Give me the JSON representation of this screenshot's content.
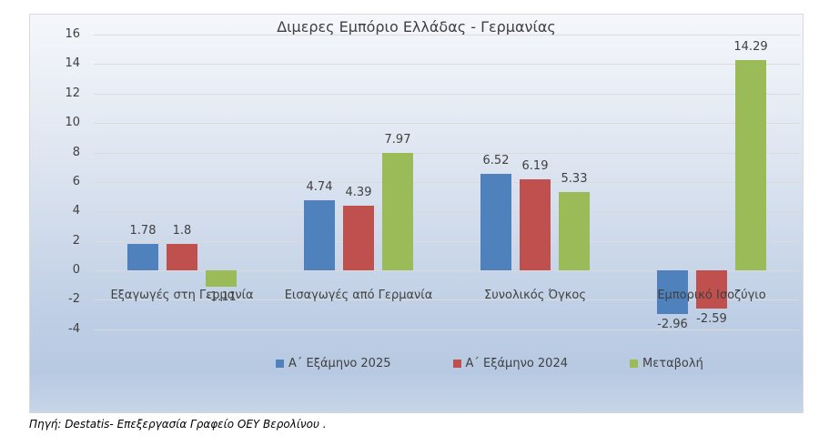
{
  "chart": {
    "title": "Διμερες Εμπόριο Ελλάδας - Γερμανίας",
    "y_ticks": [
      "16",
      "14",
      "12",
      "10",
      "8",
      "6",
      "4",
      "2",
      "0",
      "-2",
      "-4"
    ],
    "categories": [
      "Εξαγωγές στη Γερμανία",
      "Εισαγωγές από Γερμανία",
      "Συνολικός Όγκος",
      "Εμπορικό Ισοζύγιο"
    ],
    "legend": [
      {
        "label": "Α΄ Εξάμηνο 2025",
        "color": "#4f81bd"
      },
      {
        "label": "Α΄ Εξάμηνο 2024",
        "color": "#c0504d"
      },
      {
        "label": "Μεταβολή",
        "color": "#9bbb59"
      }
    ],
    "value_labels": {
      "s0": [
        "1.78",
        "4.74",
        "6.52",
        "-2.96"
      ],
      "s1": [
        "1.8",
        "4.39",
        "6.19",
        "-2.59"
      ],
      "s2": [
        "-1.11",
        "7.97",
        "5.33",
        "14.29"
      ]
    }
  },
  "source_note": "Πηγή: Destatis- Επεξεργασία Γραφείο ΟΕΥ Βερολίνου .",
  "chart_data": {
    "type": "bar",
    "title": "Διμερες Εμπόριο Ελλάδας - Γερμανίας",
    "categories": [
      "Εξαγωγές στη Γερμανία",
      "Εισαγωγές από Γερμανία",
      "Συνολικός Όγκος",
      "Εμπορικό Ισοζύγιο"
    ],
    "series": [
      {
        "name": "Α΄ Εξάμηνο 2025",
        "color": "#4f81bd",
        "values": [
          1.78,
          4.74,
          6.52,
          -2.96
        ]
      },
      {
        "name": "Α΄ Εξάμηνο 2024",
        "color": "#c0504d",
        "values": [
          1.8,
          4.39,
          6.19,
          -2.59
        ]
      },
      {
        "name": "Μεταβολή",
        "color": "#9bbb59",
        "values": [
          -1.11,
          7.97,
          5.33,
          14.29
        ]
      }
    ],
    "xlabel": "",
    "ylabel": "",
    "ylim": [
      -4,
      16
    ],
    "yticks": [
      -4,
      -2,
      0,
      2,
      4,
      6,
      8,
      10,
      12,
      14,
      16
    ],
    "grid": true,
    "legend_position": "bottom",
    "data_labels": true,
    "source": "Πηγή: Destatis- Επεξεργασία Γραφείο ΟΕΥ Βερολίνου ."
  }
}
